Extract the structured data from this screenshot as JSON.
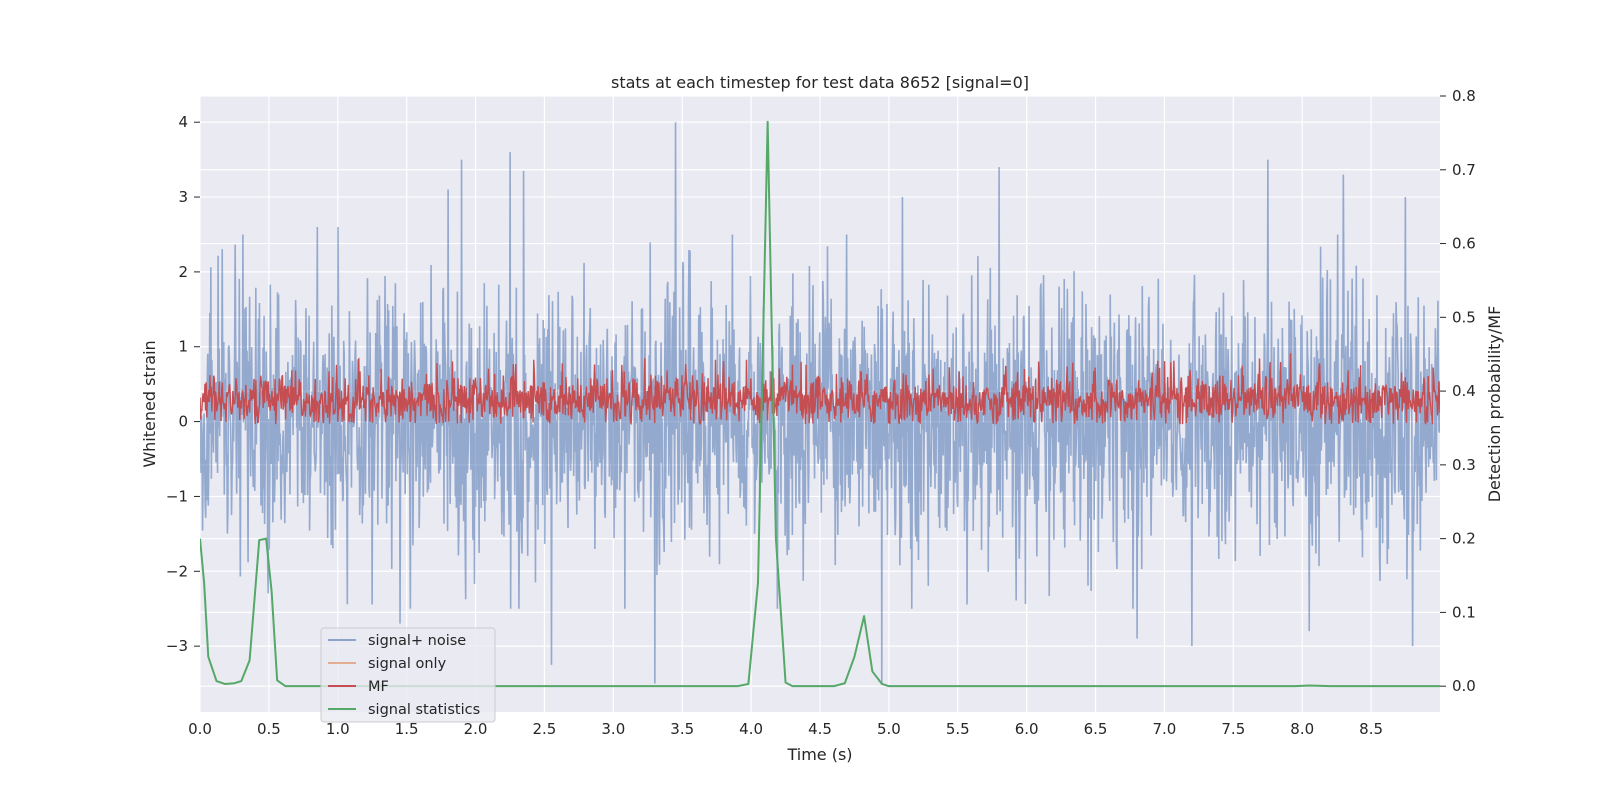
{
  "chart_data": {
    "type": "line",
    "title": "stats at each timestep for test data 8652 [signal=0]",
    "xlabel": "Time (s)",
    "ylabel": "Whitened strain",
    "y2label": "Detection probability/MF",
    "xlim": [
      0,
      9
    ],
    "ylim": [
      -3.88,
      4.35
    ],
    "y2lim": [
      -0.035,
      0.8
    ],
    "x_ticks": [
      0.0,
      0.5,
      1.0,
      1.5,
      2.0,
      2.5,
      3.0,
      3.5,
      4.0,
      4.5,
      5.0,
      5.5,
      6.0,
      6.5,
      7.0,
      7.5,
      8.0,
      8.5
    ],
    "x_tick_labels": [
      "0.0",
      "0.5",
      "1.0",
      "1.5",
      "2.0",
      "2.5",
      "3.0",
      "3.5",
      "4.0",
      "4.5",
      "5.0",
      "5.5",
      "6.0",
      "6.5",
      "7.0",
      "7.5",
      "8.0",
      "8.5"
    ],
    "y_ticks": [
      -3,
      -2,
      -1,
      0,
      1,
      2,
      3,
      4
    ],
    "y_tick_labels": [
      "−3",
      "−2",
      "−1",
      "0",
      "1",
      "2",
      "3",
      "4"
    ],
    "y2_ticks": [
      0.0,
      0.1,
      0.2,
      0.3,
      0.4,
      0.5,
      0.6,
      0.7,
      0.8
    ],
    "y2_tick_labels": [
      "0.0",
      "0.1",
      "0.2",
      "0.3",
      "0.4",
      "0.5",
      "0.6",
      "0.7",
      "0.8"
    ],
    "grid": true,
    "legend_position": "lower-left",
    "noise": {
      "typical_amplitude": 1.45,
      "spikes": [
        [
          0.31,
          2.5
        ],
        [
          0.85,
          2.6
        ],
        [
          1.0,
          2.6
        ],
        [
          1.45,
          3.0
        ],
        [
          1.8,
          3.1
        ],
        [
          1.9,
          3.5
        ],
        [
          2.25,
          3.6
        ],
        [
          2.35,
          3.35
        ],
        [
          3.45,
          4.0
        ],
        [
          5.1,
          3.0
        ],
        [
          5.8,
          3.4
        ],
        [
          7.75,
          3.5
        ],
        [
          8.3,
          3.3
        ],
        [
          8.75,
          3.0
        ],
        [
          1.45,
          -2.7
        ],
        [
          2.55,
          -3.25
        ],
        [
          3.3,
          -3.5
        ],
        [
          4.95,
          -3.5
        ],
        [
          6.8,
          -2.9
        ],
        [
          7.2,
          -3.0
        ],
        [
          8.05,
          -2.8
        ],
        [
          8.8,
          -3.0
        ]
      ]
    },
    "series": [
      {
        "name": "signal+ noise",
        "color": "#4c72b0",
        "axis": "left"
      },
      {
        "name": "signal only",
        "color": "#dd8452",
        "axis": "left"
      },
      {
        "name": "MF",
        "color": "#c44e52",
        "axis": "right",
        "band": [
          0.355,
          0.42
        ],
        "min": 0.355,
        "max": 0.445
      },
      {
        "name": "signal statistics",
        "color": "#55a868",
        "axis": "right",
        "x": [
          0.0,
          0.03,
          0.06,
          0.12,
          0.18,
          0.25,
          0.3,
          0.36,
          0.43,
          0.48,
          0.52,
          0.56,
          0.62,
          3.5,
          3.9,
          3.98,
          4.05,
          4.12,
          4.18,
          4.25,
          4.3,
          4.6,
          4.68,
          4.75,
          4.82,
          4.88,
          4.95,
          5.0,
          7.95,
          8.05,
          8.2,
          9.0
        ],
        "values": [
          0.2,
          0.14,
          0.04,
          0.007,
          0.003,
          0.004,
          0.007,
          0.035,
          0.198,
          0.2,
          0.128,
          0.008,
          0.0,
          0.0,
          0.0,
          0.003,
          0.14,
          0.765,
          0.2,
          0.005,
          0.0,
          0.0,
          0.004,
          0.04,
          0.095,
          0.02,
          0.003,
          0.0,
          0.0,
          0.001,
          0.0,
          0.0
        ]
      }
    ]
  }
}
